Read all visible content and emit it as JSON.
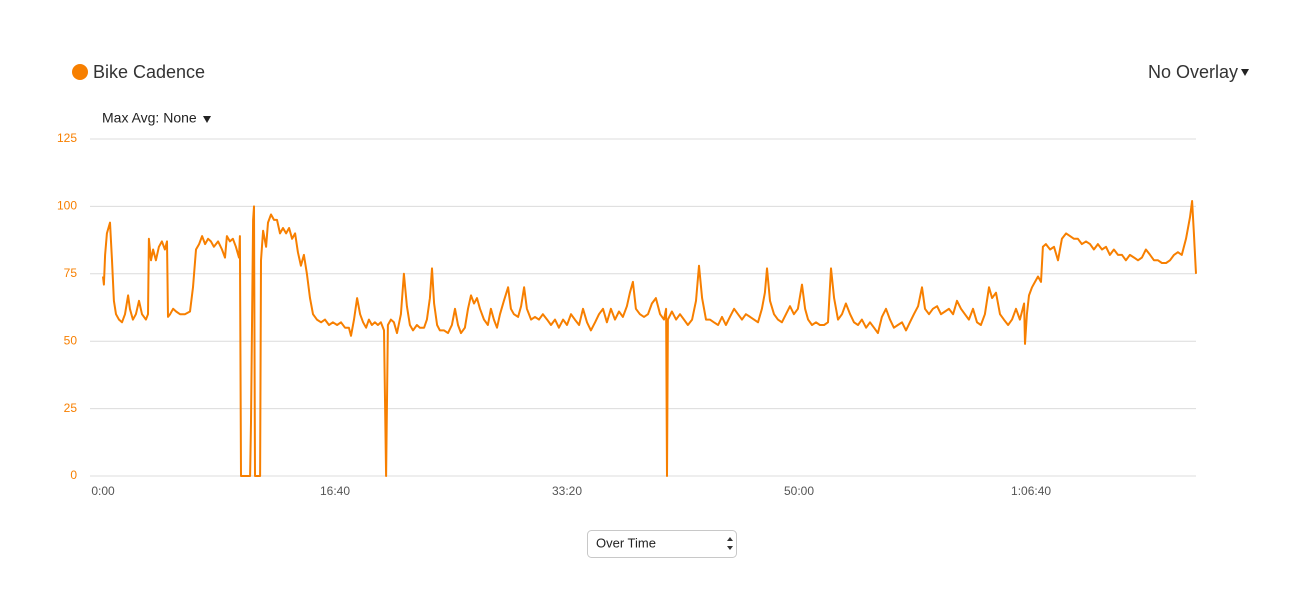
{
  "chart_data": {
    "type": "line",
    "max_avg_menu": "Max Avg: None",
    "overlay_menu": "No Overlay",
    "x_mode_select": "Over Time",
    "xlim": [
      0,
      4711
    ],
    "ylim": [
      0,
      125
    ],
    "yticks": [
      0,
      25,
      50,
      75,
      100,
      125
    ],
    "xticks": [
      {
        "value": 0,
        "label": "0:00"
      },
      {
        "value": 1000,
        "label": "16:40"
      },
      {
        "value": 2000,
        "label": "33:20"
      },
      {
        "value": 3000,
        "label": "50:00"
      },
      {
        "value": 4000,
        "label": "1:06:40"
      }
    ],
    "grid": true,
    "x": [
      0,
      4,
      9,
      17,
      30,
      39,
      47,
      56,
      69,
      82,
      95,
      108,
      116,
      129,
      142,
      155,
      168,
      185,
      194,
      198,
      207,
      216,
      228,
      241,
      254,
      267,
      276,
      280,
      289,
      302,
      315,
      332,
      353,
      375,
      388,
      401,
      414,
      427,
      440,
      453,
      465,
      478,
      496,
      513,
      526,
      534,
      547,
      560,
      573,
      586,
      590,
      595,
      612,
      634,
      638,
      647,
      651,
      655,
      677,
      681,
      690,
      703,
      711,
      724,
      737,
      750,
      763,
      776,
      789,
      802,
      815,
      828,
      840,
      853,
      866,
      879,
      892,
      905,
      922,
      940,
      957,
      974,
      991,
      1009,
      1026,
      1043,
      1060,
      1069,
      1082,
      1095,
      1108,
      1121,
      1134,
      1146,
      1159,
      1172,
      1185,
      1198,
      1211,
      1220,
      1228,
      1241,
      1254,
      1267,
      1284,
      1297,
      1310,
      1323,
      1336,
      1353,
      1366,
      1384,
      1396,
      1409,
      1418,
      1427,
      1440,
      1452,
      1470,
      1487,
      1504,
      1517,
      1530,
      1543,
      1560,
      1573,
      1586,
      1599,
      1612,
      1625,
      1642,
      1659,
      1672,
      1685,
      1698,
      1711,
      1728,
      1746,
      1758,
      1771,
      1789,
      1802,
      1815,
      1827,
      1845,
      1862,
      1879,
      1896,
      1914,
      1931,
      1948,
      1965,
      1983,
      2000,
      2017,
      2034,
      2052,
      2069,
      2086,
      2103,
      2121,
      2138,
      2155,
      2172,
      2189,
      2207,
      2224,
      2241,
      2258,
      2271,
      2284,
      2297,
      2314,
      2332,
      2349,
      2366,
      2383,
      2401,
      2418,
      2427,
      2431,
      2435,
      2452,
      2470,
      2487,
      2504,
      2521,
      2539,
      2556,
      2569,
      2582,
      2599,
      2616,
      2633,
      2651,
      2668,
      2685,
      2702,
      2720,
      2737,
      2754,
      2771,
      2789,
      2806,
      2823,
      2840,
      2853,
      2862,
      2875,
      2892,
      2909,
      2926,
      2944,
      2961,
      2978,
      2995,
      3013,
      3026,
      3039,
      3056,
      3073,
      3090,
      3108,
      3125,
      3138,
      3151,
      3168,
      3185,
      3202,
      3220,
      3237,
      3254,
      3271,
      3289,
      3306,
      3323,
      3340,
      3357,
      3375,
      3392,
      3409,
      3426,
      3444,
      3461,
      3478,
      3495,
      3513,
      3530,
      3543,
      3560,
      3577,
      3595,
      3612,
      3629,
      3646,
      3664,
      3681,
      3698,
      3715,
      3732,
      3750,
      3767,
      3784,
      3801,
      3819,
      3832,
      3849,
      3866,
      3883,
      3901,
      3918,
      3935,
      3952,
      3970,
      3974,
      3982,
      3991,
      4004,
      4017,
      4030,
      4043,
      4051,
      4064,
      4082,
      4099,
      4116,
      4133,
      4151,
      4168,
      4185,
      4202,
      4219,
      4237,
      4254,
      4271,
      4288,
      4306,
      4323,
      4340,
      4357,
      4375,
      4392,
      4409,
      4426,
      4444,
      4461,
      4478,
      4495,
      4513,
      4530,
      4547,
      4564,
      4582,
      4599,
      4616,
      4633,
      4650,
      4668,
      4685,
      4694,
      4702,
      4711
    ],
    "series": [
      {
        "name": "Bike Cadence",
        "color": "#f77f00",
        "values": [
          74,
          71,
          82,
          90,
          94,
          80,
          65,
          60,
          58,
          57,
          60,
          67,
          62,
          58,
          60,
          65,
          60,
          58,
          60,
          88,
          80,
          84,
          80,
          85,
          87,
          84,
          87,
          59,
          60,
          62,
          61,
          60,
          60,
          61,
          70,
          84,
          86,
          89,
          86,
          88,
          87,
          85,
          87,
          84,
          81,
          89,
          87,
          88,
          85,
          81,
          89,
          0,
          0,
          0,
          20,
          95,
          100,
          0,
          0,
          80,
          91,
          85,
          94,
          97,
          95,
          95,
          90,
          92,
          90,
          92,
          88,
          90,
          83,
          78,
          82,
          75,
          66,
          60,
          58,
          57,
          58,
          56,
          57,
          56,
          57,
          55,
          55,
          52,
          58,
          66,
          60,
          57,
          55,
          58,
          56,
          57,
          56,
          57,
          54,
          0,
          56,
          58,
          57,
          53,
          60,
          75,
          63,
          56,
          54,
          56,
          55,
          55,
          58,
          66,
          77,
          64,
          56,
          54,
          54,
          53,
          56,
          62,
          56,
          53,
          55,
          62,
          67,
          64,
          66,
          62,
          58,
          56,
          62,
          58,
          55,
          60,
          65,
          70,
          62,
          60,
          59,
          63,
          70,
          62,
          58,
          59,
          58,
          60,
          58,
          56,
          58,
          55,
          58,
          56,
          60,
          58,
          56,
          62,
          57,
          54,
          57,
          60,
          62,
          57,
          62,
          58,
          61,
          59,
          63,
          68,
          72,
          62,
          60,
          59,
          60,
          64,
          66,
          60,
          58,
          62,
          0,
          58,
          61,
          58,
          60,
          58,
          56,
          58,
          65,
          78,
          66,
          58,
          58,
          57,
          56,
          59,
          56,
          59,
          62,
          60,
          58,
          60,
          59,
          58,
          57,
          62,
          68,
          77,
          65,
          60,
          58,
          57,
          60,
          63,
          60,
          62,
          71,
          62,
          58,
          56,
          57,
          56,
          56,
          57,
          77,
          66,
          58,
          60,
          64,
          60,
          57,
          56,
          58,
          55,
          57,
          55,
          53,
          59,
          62,
          58,
          55,
          56,
          57,
          54,
          57,
          60,
          63,
          70,
          62,
          60,
          62,
          63,
          60,
          61,
          62,
          60,
          65,
          62,
          60,
          58,
          62,
          57,
          56,
          60,
          70,
          66,
          68,
          60,
          58,
          56,
          58,
          62,
          58,
          64,
          49,
          60,
          67,
          70,
          72,
          74,
          72,
          85,
          86,
          84,
          85,
          80,
          88,
          90,
          89,
          88,
          88,
          86,
          87,
          86,
          84,
          86,
          84,
          85,
          82,
          84,
          82,
          82,
          80,
          82,
          81,
          80,
          81,
          84,
          82,
          80,
          80,
          79,
          79,
          80,
          82,
          83,
          82,
          88,
          96,
          102,
          90,
          75
        ]
      }
    ]
  }
}
